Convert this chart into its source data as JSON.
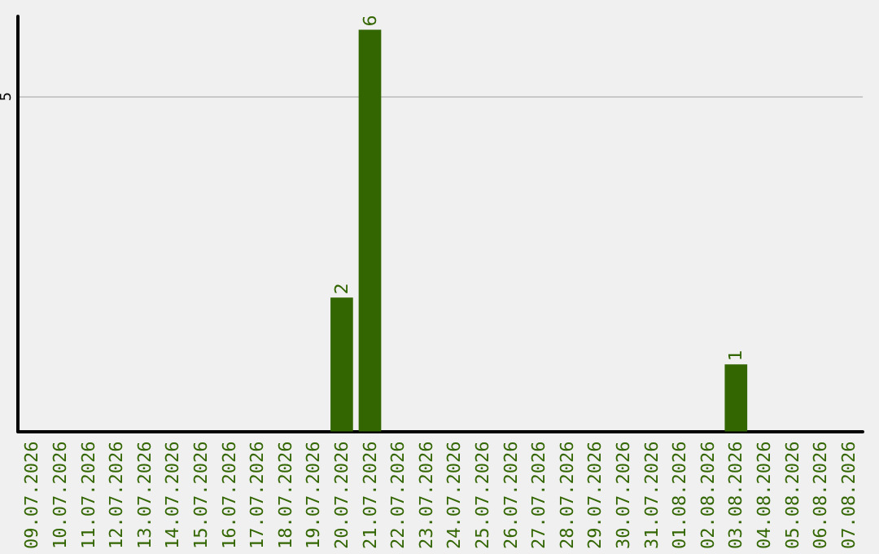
{
  "chart_data": {
    "type": "bar",
    "categories": [
      "09.07.2026",
      "10.07.2026",
      "11.07.2026",
      "12.07.2026",
      "13.07.2026",
      "14.07.2026",
      "15.07.2026",
      "16.07.2026",
      "17.07.2026",
      "18.07.2026",
      "19.07.2026",
      "20.07.2026",
      "21.07.2026",
      "22.07.2026",
      "23.07.2026",
      "24.07.2026",
      "25.07.2026",
      "26.07.2026",
      "27.07.2026",
      "28.07.2026",
      "29.07.2026",
      "30.07.2026",
      "31.07.2026",
      "01.08.2026",
      "02.08.2026",
      "03.08.2026",
      "04.08.2026",
      "05.08.2026",
      "06.08.2026",
      "07.08.2026"
    ],
    "values": [
      0,
      0,
      0,
      0,
      0,
      0,
      0,
      0,
      0,
      0,
      0,
      2,
      6,
      0,
      0,
      0,
      0,
      0,
      0,
      0,
      0,
      0,
      0,
      0,
      0,
      1,
      0,
      0,
      0,
      0
    ],
    "value_labels": [
      null,
      null,
      null,
      null,
      null,
      null,
      null,
      null,
      null,
      null,
      null,
      "2",
      "6",
      null,
      null,
      null,
      null,
      null,
      null,
      null,
      null,
      null,
      null,
      null,
      null,
      "1",
      null,
      null,
      null,
      null
    ],
    "color": "#336600",
    "ylim": [
      0,
      6.2
    ],
    "yticks": [
      5
    ],
    "grid": "y"
  }
}
